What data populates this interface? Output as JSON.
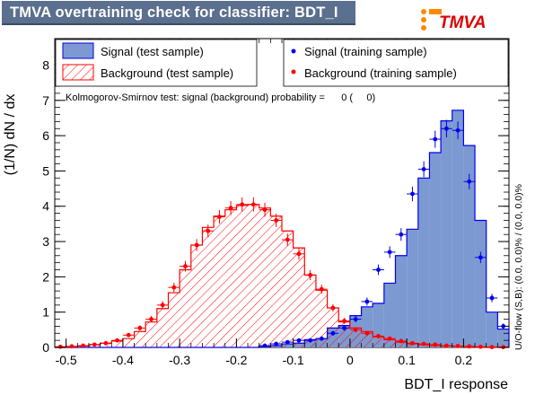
{
  "title": "TMVA overtraining check for classifier: BDT_I",
  "logo": {
    "text": "TMVA",
    "accent": "#ff8800",
    "brand_color": "#dd0000"
  },
  "side_note": "U/O-flow (S,B): (0.0, 0.0)% / (0.0, 0.0)%",
  "colors": {
    "signal_fill": "#7d99d1",
    "signal_line": "#0000ee",
    "background_line": "#ff0000",
    "signal_points": "#0000ee",
    "background_points": "#ff0000"
  },
  "chart_data": {
    "type": "bar",
    "xlabel": "BDT_I response",
    "ylabel": "(1/N) dN / dx",
    "xlim": [
      -0.52,
      0.28
    ],
    "ylim": [
      0,
      8.75
    ],
    "xticks": [
      "-0.5",
      "-0.4",
      "-0.3",
      "-0.2",
      "-0.1",
      "0",
      "0.1",
      "0.2"
    ],
    "yticks": [
      "0",
      "1",
      "2",
      "3",
      "4",
      "5",
      "6",
      "7",
      "8"
    ],
    "ks_text": "Kolmogorov-Smirnov test: signal (background) probability =      0 (     0)",
    "legend": {
      "position": "top",
      "entries": [
        "Signal (test sample)",
        "Background (test sample)",
        "Signal (training sample)",
        "Background (training sample)"
      ]
    },
    "bin_edges": [
      -0.52,
      -0.5,
      -0.48,
      -0.46,
      -0.44,
      -0.42,
      -0.4,
      -0.38,
      -0.36,
      -0.34,
      -0.32,
      -0.3,
      -0.28,
      -0.26,
      -0.24,
      -0.22,
      -0.2,
      -0.18,
      -0.16,
      -0.14,
      -0.12,
      -0.1,
      -0.08,
      -0.06,
      -0.04,
      -0.02,
      0.0,
      0.02,
      0.04,
      0.06,
      0.08,
      0.1,
      0.12,
      0.14,
      0.16,
      0.18,
      0.2,
      0.22,
      0.24,
      0.26,
      0.28
    ],
    "series": [
      {
        "name": "Signal (test sample)",
        "style": "histogram-filled",
        "values": [
          0,
          0,
          0,
          0,
          0,
          0,
          0,
          0,
          0,
          0,
          0,
          0,
          0,
          0,
          0,
          0,
          0,
          0,
          0.02,
          0.05,
          0.1,
          0.12,
          0.22,
          0.25,
          0.55,
          0.62,
          0.9,
          1.15,
          1.25,
          1.82,
          2.6,
          3.35,
          4.8,
          5.52,
          6.42,
          6.72,
          5.72,
          3.6,
          1.0,
          0.52
        ]
      },
      {
        "name": "Background (test sample)",
        "style": "histogram-hatched",
        "values": [
          0,
          0.02,
          0.04,
          0.08,
          0.12,
          0.18,
          0.25,
          0.45,
          0.72,
          1.1,
          1.55,
          2.2,
          2.9,
          3.4,
          3.72,
          3.9,
          4.02,
          4.05,
          3.95,
          3.72,
          3.3,
          2.82,
          2.05,
          1.62,
          1.12,
          0.72,
          0.55,
          0.45,
          0.3,
          0.22,
          0.15,
          0.1,
          0.08,
          0.05,
          0.04,
          0.03,
          0.02,
          0.01,
          0,
          0
        ]
      },
      {
        "name": "Signal (training sample)",
        "style": "points",
        "values": [
          0,
          0,
          0,
          0,
          0,
          0,
          0,
          0,
          0,
          0,
          0,
          0,
          0,
          0,
          0,
          0,
          0,
          0,
          0.05,
          0.1,
          0.15,
          0.2,
          0.2,
          0.25,
          0.4,
          0.55,
          0.8,
          1.3,
          2.2,
          2.7,
          3.2,
          4.35,
          5.05,
          5.9,
          6.2,
          6.15,
          4.7,
          2.55,
          1.4,
          0.6
        ]
      },
      {
        "name": "Background (training sample)",
        "style": "points",
        "values": [
          0.02,
          0.03,
          0.05,
          0.08,
          0.12,
          0.2,
          0.35,
          0.55,
          0.8,
          1.2,
          1.7,
          2.3,
          2.9,
          3.3,
          3.7,
          3.95,
          4.05,
          4.05,
          3.9,
          3.6,
          3.05,
          2.65,
          2.05,
          1.65,
          1.12,
          0.75,
          0.5,
          0.4,
          0.32,
          0.25,
          0.18,
          0.12,
          0.1,
          0.08,
          0.05,
          0.04,
          0.03,
          0.02,
          0.01,
          0.01
        ]
      }
    ]
  }
}
